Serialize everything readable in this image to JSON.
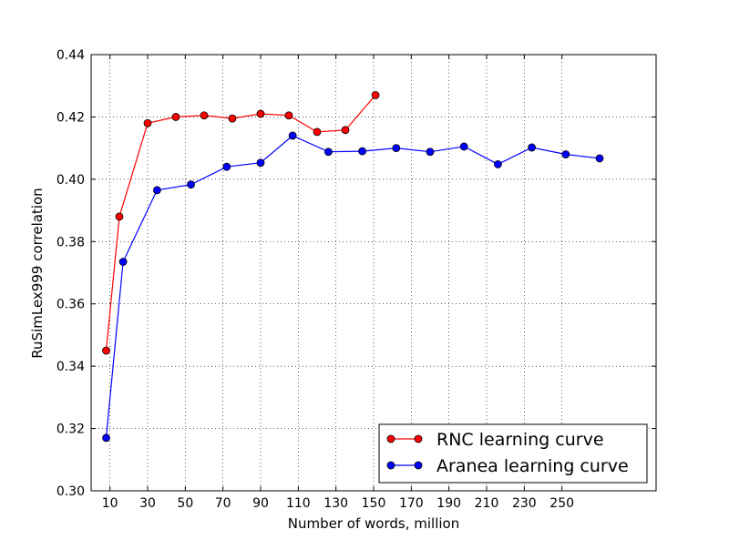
{
  "chart_data": {
    "type": "line",
    "title": "",
    "xlabel": "Number of words, million",
    "ylabel": "RuSimLex999 correlation",
    "xlim": [
      0,
      300
    ],
    "ylim": [
      0.3,
      0.44
    ],
    "xticks": [
      10,
      30,
      50,
      70,
      90,
      110,
      130,
      150,
      170,
      190,
      210,
      230,
      250
    ],
    "xtick_labels": [
      "10",
      "30",
      "50",
      "70",
      "90",
      "110",
      "130",
      "150",
      "170",
      "190",
      "210",
      "230",
      "250"
    ],
    "yticks": [
      0.3,
      0.32,
      0.34,
      0.36,
      0.38,
      0.4,
      0.42,
      0.44
    ],
    "ytick_labels": [
      "0.30",
      "0.32",
      "0.34",
      "0.36",
      "0.38",
      "0.40",
      "0.42",
      "0.44"
    ],
    "grid": true,
    "grid_style": "dotted",
    "legend_position": "bottom-right",
    "series": [
      {
        "name": "RNC learning curve",
        "color": "#ff0000",
        "marker": "circle",
        "x": [
          8,
          15,
          30,
          45,
          60,
          75,
          90,
          105,
          120,
          135,
          151
        ],
        "y": [
          0.345,
          0.388,
          0.418,
          0.42,
          0.4205,
          0.4195,
          0.421,
          0.4205,
          0.4152,
          0.4158,
          0.427
        ]
      },
      {
        "name": "Aranea learning curve",
        "color": "#0000ff",
        "marker": "circle",
        "x": [
          8,
          17,
          35,
          53,
          72,
          90,
          107,
          126,
          144,
          162,
          180,
          198,
          216,
          234,
          252,
          270
        ],
        "y": [
          0.317,
          0.3735,
          0.3965,
          0.3983,
          0.404,
          0.4053,
          0.414,
          0.4088,
          0.409,
          0.41,
          0.4088,
          0.4105,
          0.4048,
          0.4102,
          0.408,
          0.4067
        ]
      }
    ]
  }
}
